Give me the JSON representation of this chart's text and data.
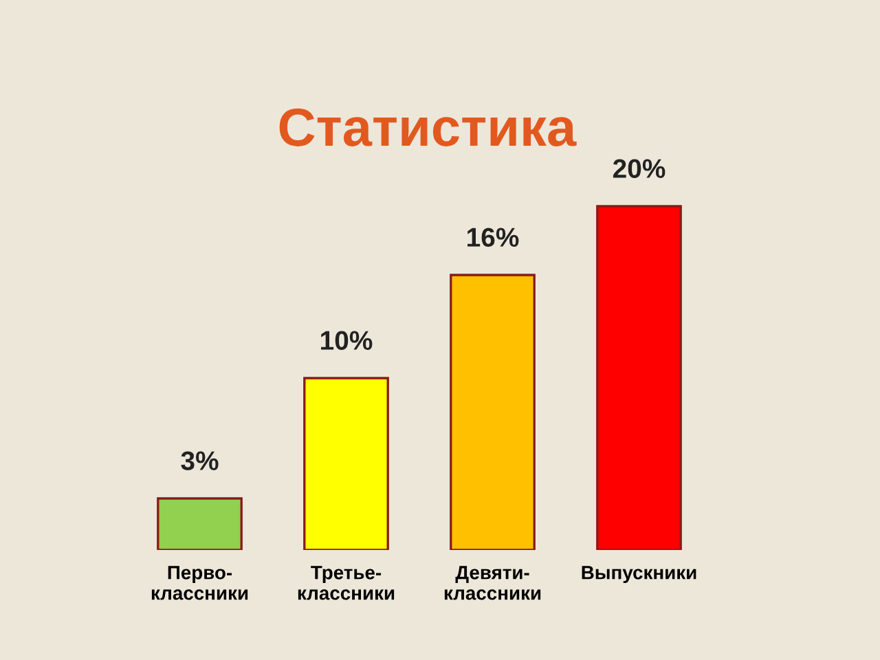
{
  "chart_data": {
    "type": "bar",
    "title": "Статистика",
    "categories": [
      "Перво-\nклассники",
      "Третье-\nклассники",
      "Девяти-\nклассники",
      "Выпускники"
    ],
    "values": [
      3,
      10,
      16,
      20
    ],
    "value_labels": [
      "3%",
      "10%",
      "16%",
      "20%"
    ],
    "colors": [
      "#92d050",
      "#ffff00",
      "#ffc000",
      "#ff0000"
    ],
    "grid": false,
    "legend": false
  }
}
